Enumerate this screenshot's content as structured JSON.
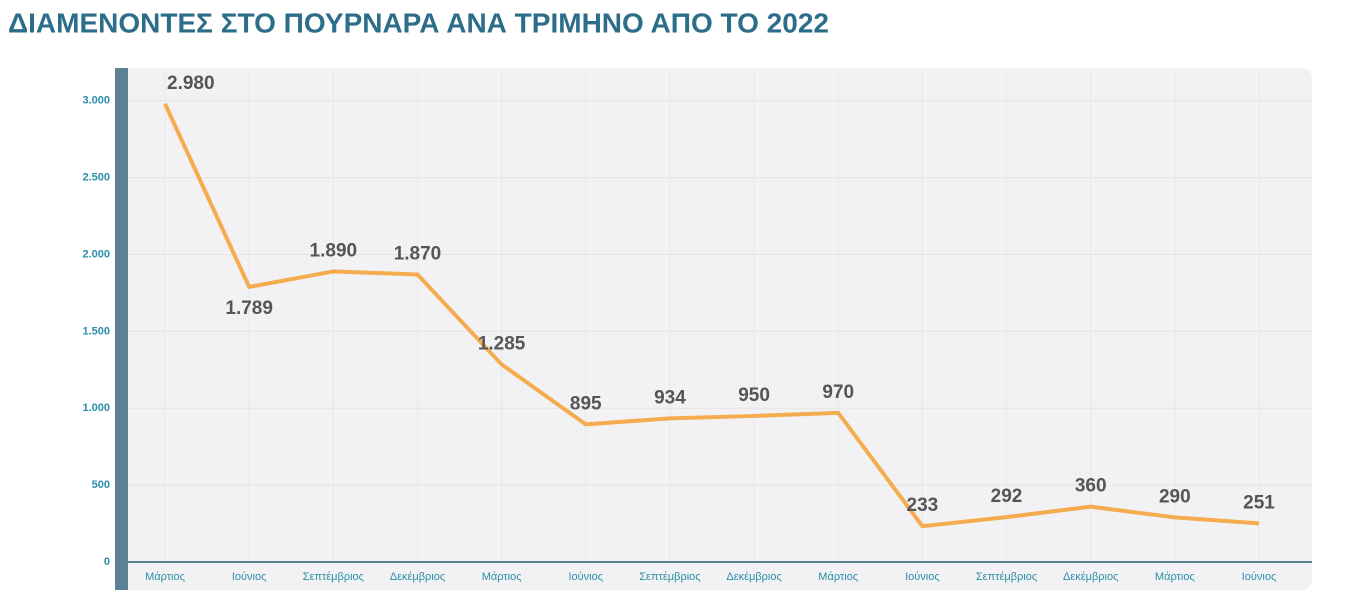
{
  "chart_data": {
    "type": "line",
    "title": "ΔΙΑΜΕΝΟΝΤΕΣ ΣΤΟ ΠΟΥΡΝΑΡΑ ΑΝΑ ΤΡΙΜΗΝΟ ΑΠΟ ΤΟ 2022",
    "categories": [
      "Μάρτιος",
      "Ιούνιος",
      "Σεπτέμβριος",
      "Δεκέμβριος",
      "Μάρτιος",
      "Ιούνιος",
      "Σεπτέμβριος",
      "Δεκέμβριος",
      "Μάρτιος",
      "Ιούνιος",
      "Σεπτέμβριος",
      "Δεκέμβριος",
      "Μάρτιος",
      "Ιούνιος"
    ],
    "values": [
      2980,
      1789,
      1890,
      1870,
      1285,
      895,
      934,
      950,
      970,
      233,
      292,
      360,
      290,
      251
    ],
    "value_labels": [
      "2.980",
      "1.789",
      "1.890",
      "1.870",
      "1.285",
      "895",
      "934",
      "950",
      "970",
      "233",
      "292",
      "360",
      "290",
      "251"
    ],
    "color": "#f5ac4e",
    "highlight_color": "#4a8fa5",
    "ylim": [
      0,
      3200
    ],
    "yticks": [
      0,
      500,
      {
        "value": 1000,
        "label": "1.000"
      },
      {
        "value": 1500,
        "label": "1.500"
      },
      {
        "value": 2000,
        "label": "2.000"
      },
      {
        "value": 2500,
        "label": "2.500"
      },
      {
        "value": 3000,
        "label": "3.000"
      }
    ],
    "grid": true
  }
}
